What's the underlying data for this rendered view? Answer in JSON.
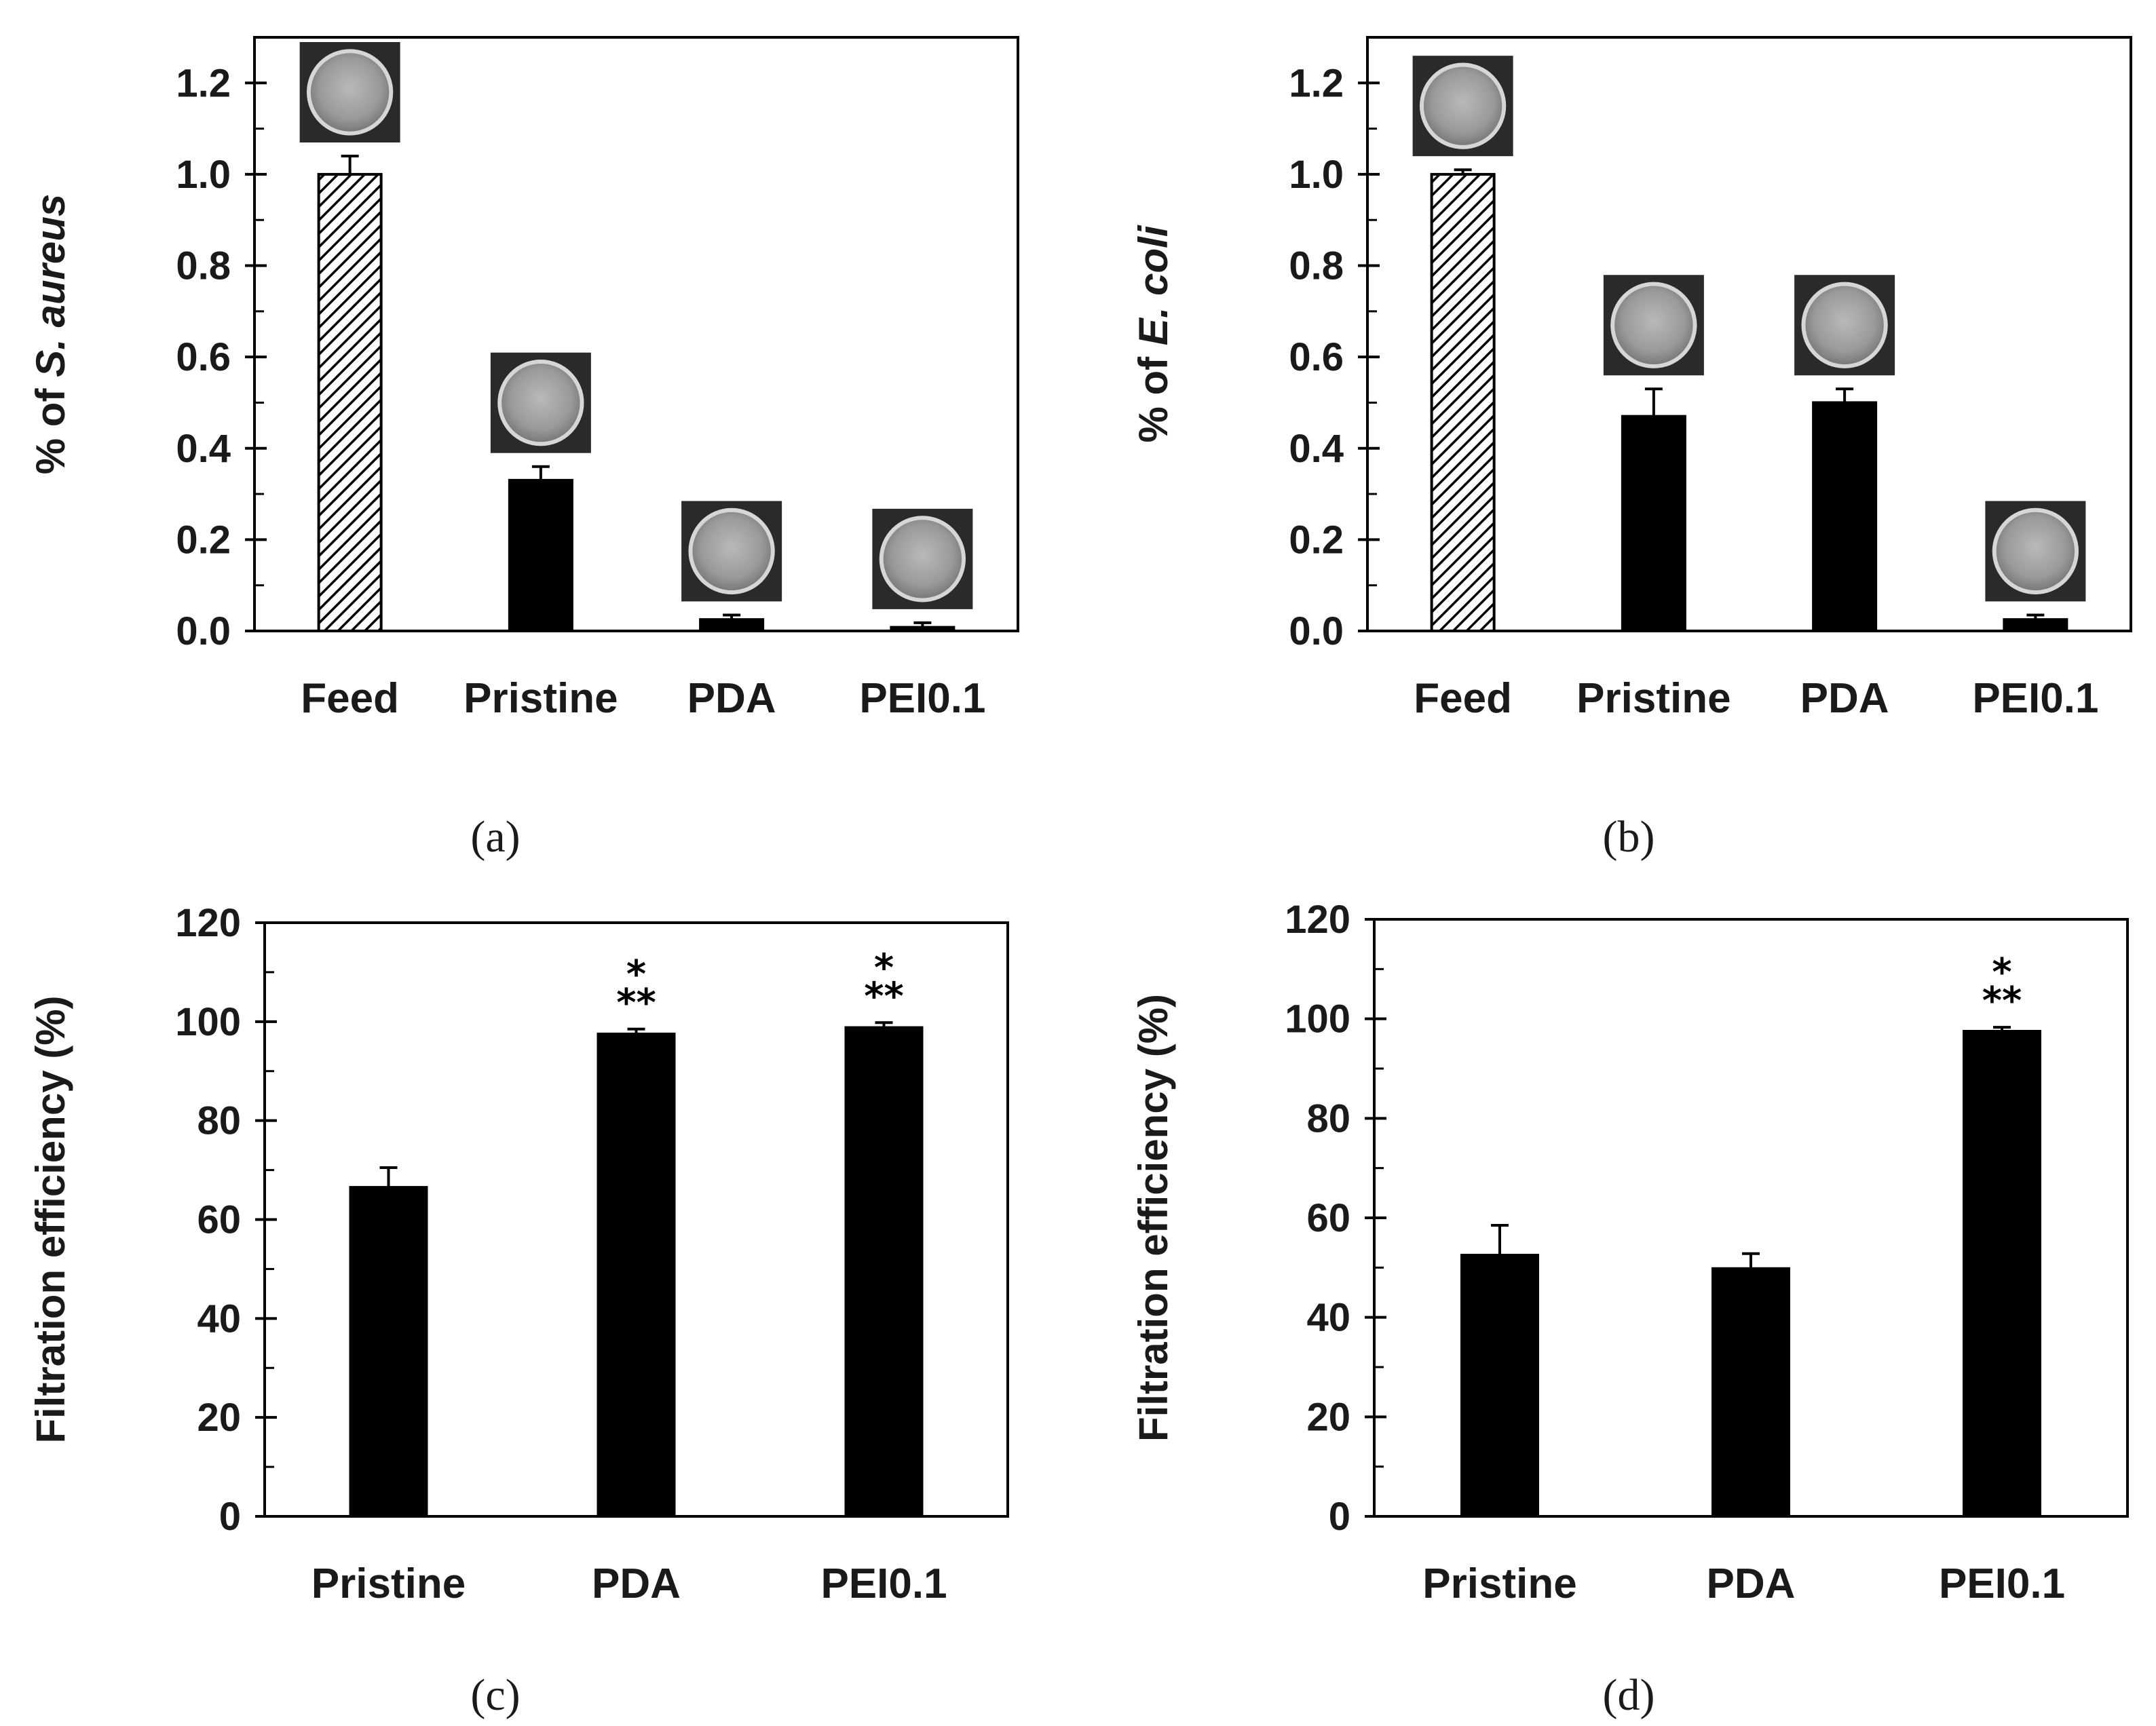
{
  "chart_data": [
    {
      "id": "a",
      "type": "bar",
      "panel_label": "(a)",
      "ylabel": "% of S. aureus",
      "ylabel_parts": [
        {
          "text": "% of ",
          "italic": false
        },
        {
          "text": "S. aureus",
          "italic": true
        }
      ],
      "categories": [
        "Feed",
        "Pristine",
        "PDA",
        "PEI0.1"
      ],
      "values": [
        1.0,
        0.33,
        0.025,
        0.008
      ],
      "errors": [
        0.04,
        0.03,
        0.01,
        0.01
      ],
      "fills": [
        "hatch",
        "solid",
        "solid",
        "solid"
      ],
      "plate_images": [
        "plate",
        "plate",
        "plate",
        "plate"
      ],
      "significance": [
        "",
        "",
        "",
        ""
      ],
      "ylim": [
        0,
        1.3
      ],
      "ticks": [
        0,
        0.2,
        0.4,
        0.6,
        0.8,
        1.0,
        1.2
      ],
      "tick_labels": [
        "0.0",
        "0.2",
        "0.4",
        "0.6",
        "0.8",
        "1.0",
        "1.2"
      ],
      "minor_step": 0.1,
      "xlabel": ""
    },
    {
      "id": "b",
      "type": "bar",
      "panel_label": "(b)",
      "ylabel": "% of E. coli",
      "ylabel_parts": [
        {
          "text": "% of ",
          "italic": false
        },
        {
          "text": "E. coli",
          "italic": true
        }
      ],
      "categories": [
        "Feed",
        "Pristine",
        "PDA",
        "PEI0.1"
      ],
      "values": [
        1.0,
        0.47,
        0.5,
        0.025
      ],
      "errors": [
        0.01,
        0.06,
        0.03,
        0.01
      ],
      "fills": [
        "hatch",
        "solid",
        "solid",
        "solid"
      ],
      "plate_images": [
        "plate",
        "plate",
        "plate",
        "plate"
      ],
      "significance": [
        "",
        "",
        "",
        ""
      ],
      "ylim": [
        0,
        1.3
      ],
      "ticks": [
        0,
        0.2,
        0.4,
        0.6,
        0.8,
        1.0,
        1.2
      ],
      "tick_labels": [
        "0.0",
        "0.2",
        "0.4",
        "0.6",
        "0.8",
        "1.0",
        "1.2"
      ],
      "minor_step": 0.1,
      "xlabel": ""
    },
    {
      "id": "c",
      "type": "bar",
      "panel_label": "(c)",
      "ylabel": "Filtration efficiency (%)",
      "ylabel_parts": [
        {
          "text": "Filtration efficiency (%)",
          "italic": false
        }
      ],
      "categories": [
        "Pristine",
        "PDA",
        "PEI0.1"
      ],
      "values": [
        66.5,
        97.5,
        98.8
      ],
      "errors": [
        4,
        1,
        1
      ],
      "fills": [
        "solid",
        "solid",
        "solid"
      ],
      "plate_images": [],
      "significance": [
        "",
        "***",
        "***"
      ],
      "ylim": [
        0,
        120
      ],
      "ticks": [
        0,
        20,
        40,
        60,
        80,
        100,
        120
      ],
      "tick_labels": [
        "0",
        "20",
        "40",
        "60",
        "80",
        "100",
        "120"
      ],
      "minor_step": 10,
      "xlabel": ""
    },
    {
      "id": "d",
      "type": "bar",
      "panel_label": "(d)",
      "ylabel": "Filtration efficiency (%)",
      "ylabel_parts": [
        {
          "text": "Filtration efficiency (%)",
          "italic": false
        }
      ],
      "categories": [
        "Pristine",
        "PDA",
        "PEI0.1"
      ],
      "values": [
        52.5,
        49.8,
        97.5
      ],
      "errors": [
        6,
        3,
        0.8
      ],
      "fills": [
        "solid",
        "solid",
        "solid"
      ],
      "plate_images": [],
      "significance": [
        "",
        "",
        "***"
      ],
      "ylim": [
        0,
        120
      ],
      "ticks": [
        0,
        20,
        40,
        60,
        80,
        100,
        120
      ],
      "tick_labels": [
        "0",
        "20",
        "40",
        "60",
        "80",
        "100",
        "120"
      ],
      "minor_step": 10,
      "xlabel": ""
    }
  ]
}
